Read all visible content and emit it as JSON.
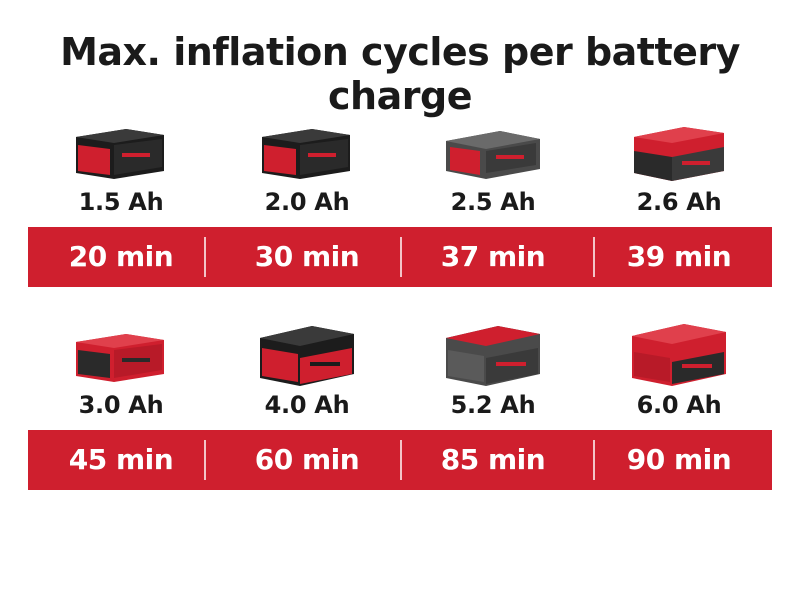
{
  "title": "Max. inflation cycles per battery charge",
  "colors": {
    "accent": "#cf1f2e",
    "battery_black": "#222222",
    "battery_grey": "#4a4a4a"
  },
  "rows": [
    {
      "batteries": [
        {
          "capacity": "1.5 Ah",
          "time": "20 min",
          "icon": "battery-pack-icon"
        },
        {
          "capacity": "2.0 Ah",
          "time": "30 min",
          "icon": "battery-pack-icon"
        },
        {
          "capacity": "2.5 Ah",
          "time": "37 min",
          "icon": "battery-pack-icon"
        },
        {
          "capacity": "2.6 Ah",
          "time": "39 min",
          "icon": "battery-pack-icon"
        }
      ]
    },
    {
      "batteries": [
        {
          "capacity": "3.0 Ah",
          "time": "45 min",
          "icon": "battery-pack-icon"
        },
        {
          "capacity": "4.0 Ah",
          "time": "60 min",
          "icon": "battery-pack-icon"
        },
        {
          "capacity": "5.2 Ah",
          "time": "85 min",
          "icon": "battery-pack-icon"
        },
        {
          "capacity": "6.0 Ah",
          "time": "90 min",
          "icon": "battery-pack-icon"
        }
      ]
    }
  ]
}
